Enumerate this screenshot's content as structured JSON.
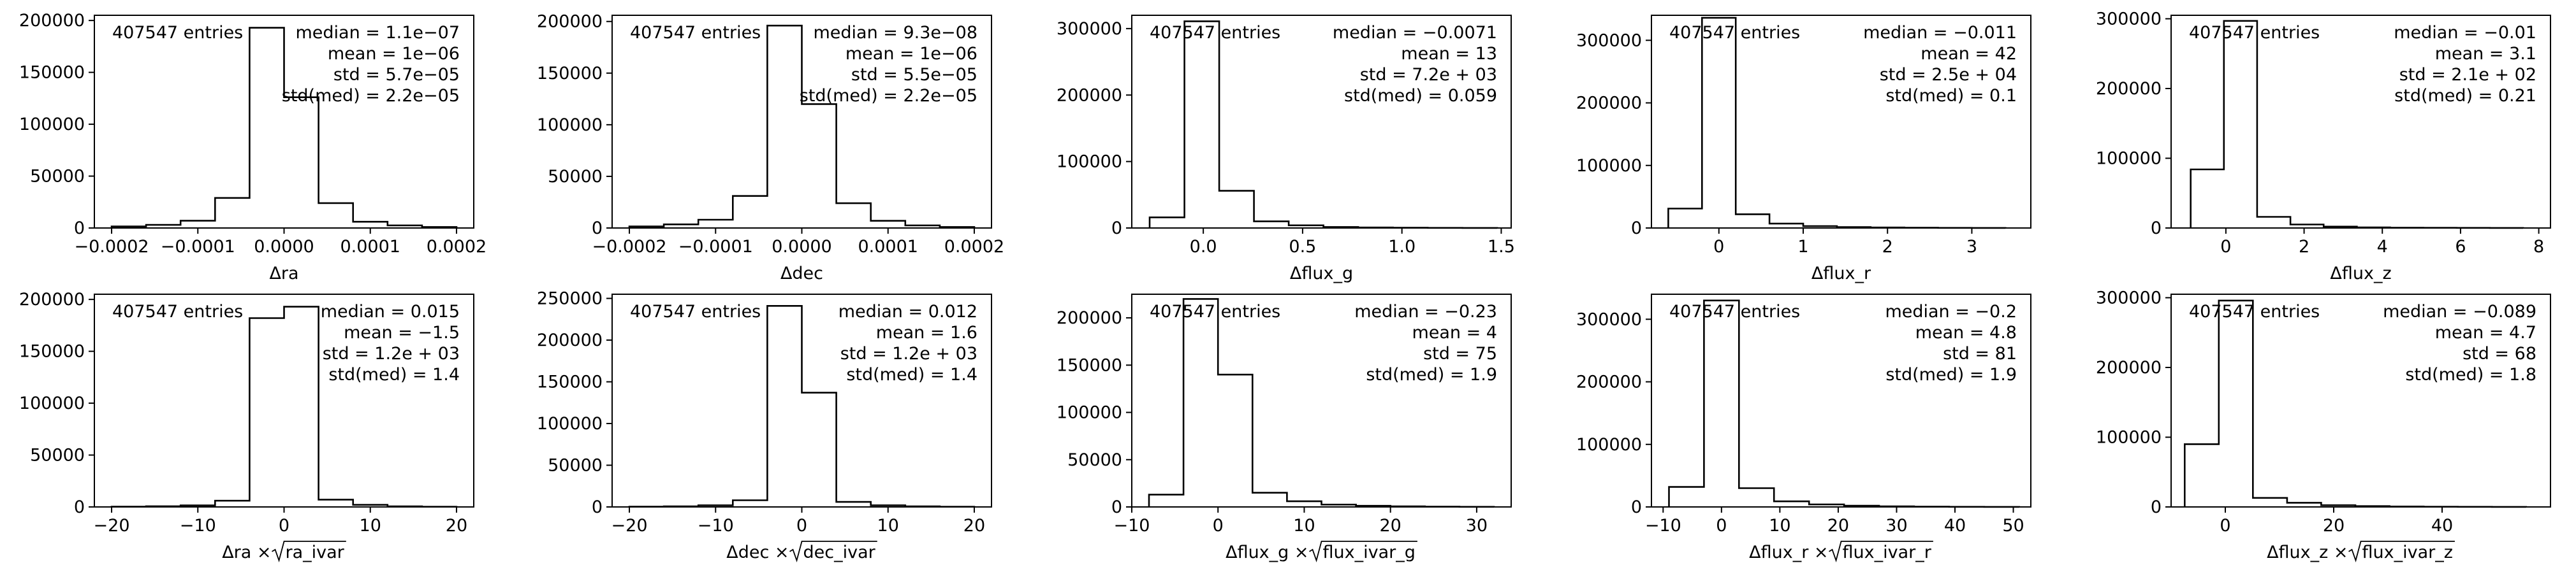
{
  "chart_data": [
    {
      "type": "bar",
      "xlabel": "Δra",
      "xticks": [
        -0.0002,
        -0.0001,
        0.0,
        0.0001,
        0.0002
      ],
      "xtick_labels": [
        "−0.0002",
        "−0.0001",
        "0.0000",
        "0.0001",
        "0.0002"
      ],
      "yticks": [
        0,
        50000,
        100000,
        150000,
        200000
      ],
      "ylim": [
        0,
        205000
      ],
      "xlim": [
        -0.00022,
        0.00022
      ],
      "bin_edges": [
        -0.0002,
        -0.00016,
        -0.00012,
        -8e-05,
        -4e-05,
        0.0,
        4e-05,
        8e-05,
        0.00012,
        0.00016,
        0.0002
      ],
      "counts": [
        1500,
        3000,
        7000,
        29000,
        193000,
        126000,
        24000,
        6000,
        2500,
        1000
      ],
      "annotation": {
        "entries": "407547 entries",
        "median": "median = 1.1e−07",
        "mean": "mean = 1e−06",
        "std": "std = 5.7e−05",
        "stdmed": "std(med) = 2.2e−05"
      }
    },
    {
      "type": "bar",
      "xlabel": "Δdec",
      "xticks": [
        -0.0002,
        -0.0001,
        0.0,
        0.0001,
        0.0002
      ],
      "xtick_labels": [
        "−0.0002",
        "−0.0001",
        "0.0000",
        "0.0001",
        "0.0002"
      ],
      "yticks": [
        0,
        50000,
        100000,
        150000,
        200000
      ],
      "ylim": [
        0,
        206000
      ],
      "xlim": [
        -0.00022,
        0.00022
      ],
      "bin_edges": [
        -0.0002,
        -0.00016,
        -0.00012,
        -8e-05,
        -4e-05,
        0.0,
        4e-05,
        8e-05,
        0.00012,
        0.00016,
        0.0002
      ],
      "counts": [
        1500,
        3500,
        8000,
        31000,
        196000,
        120000,
        24000,
        7000,
        2500,
        1000
      ],
      "annotation": {
        "entries": "407547 entries",
        "median": "median = 9.3e−08",
        "mean": "mean = 1e−06",
        "std": "std = 5.5e−05",
        "stdmed": "std(med) = 2.2e−05"
      }
    },
    {
      "type": "bar",
      "xlabel": "Δflux_g",
      "xticks": [
        0.0,
        0.5,
        1.0,
        1.5
      ],
      "xtick_labels": [
        "0.0",
        "0.5",
        "1.0",
        "1.5"
      ],
      "yticks": [
        0,
        100000,
        200000,
        300000
      ],
      "ylim": [
        0,
        320000
      ],
      "xlim": [
        -0.36,
        1.55
      ],
      "bin_edges": [
        -0.27,
        -0.095,
        0.08,
        0.255,
        0.43,
        0.605,
        0.78,
        0.955,
        1.13,
        1.305,
        1.48
      ],
      "counts": [
        16000,
        311000,
        56000,
        10000,
        4000,
        1500,
        800,
        400,
        200,
        100
      ],
      "annotation": {
        "entries": "407547 entries",
        "median": "median = −0.0071",
        "mean": "mean = 13",
        "std": "std = 7.2e + 03",
        "stdmed": "std(med) = 0.059"
      }
    },
    {
      "type": "bar",
      "xlabel": "Δflux_r",
      "xticks": [
        0,
        1,
        2,
        3
      ],
      "xtick_labels": [
        "0",
        "1",
        "2",
        "3"
      ],
      "yticks": [
        0,
        100000,
        200000,
        300000
      ],
      "ylim": [
        0,
        340000
      ],
      "xlim": [
        -0.8,
        3.7
      ],
      "bin_edges": [
        -0.6,
        -0.2,
        0.2,
        0.6,
        1.0,
        1.4,
        1.8,
        2.2,
        2.6,
        3.0,
        3.4
      ],
      "counts": [
        31000,
        336000,
        22000,
        7000,
        3000,
        1500,
        800,
        400,
        200,
        100
      ],
      "annotation": {
        "entries": "407547 entries",
        "median": "median = −0.011",
        "mean": "mean = 42",
        "std": "std = 2.5e + 04",
        "stdmed": "std(med) = 0.1"
      }
    },
    {
      "type": "bar",
      "xlabel": "Δflux_z",
      "xticks": [
        0,
        2,
        4,
        6,
        8
      ],
      "xtick_labels": [
        "0",
        "2",
        "4",
        "6",
        "8"
      ],
      "yticks": [
        0,
        100000,
        200000,
        300000
      ],
      "ylim": [
        0,
        305000
      ],
      "xlim": [
        -1.4,
        8.3
      ],
      "bin_edges": [
        -0.9,
        -0.05,
        0.8,
        1.65,
        2.5,
        3.35,
        4.2,
        5.05,
        5.9,
        6.75,
        7.6
      ],
      "counts": [
        84000,
        297000,
        16000,
        5000,
        2000,
        900,
        500,
        300,
        150,
        80
      ],
      "annotation": {
        "entries": "407547 entries",
        "median": "median = −0.01",
        "mean": "mean = 3.1",
        "std": "std = 2.1e + 02",
        "stdmed": "std(med) = 0.21"
      }
    },
    {
      "type": "bar",
      "xlabel_main": "Δra × ",
      "xlabel_sqrt": "ra_ivar",
      "xticks": [
        -20,
        -10,
        0,
        10,
        20
      ],
      "xtick_labels": [
        "−20",
        "−10",
        "0",
        "10",
        "20"
      ],
      "yticks": [
        0,
        50000,
        100000,
        150000,
        200000
      ],
      "ylim": [
        0,
        205000
      ],
      "xlim": [
        -22,
        22
      ],
      "bin_edges": [
        -20,
        -16,
        -12,
        -8,
        -4,
        0,
        4,
        8,
        12,
        16,
        20
      ],
      "counts": [
        300,
        700,
        1500,
        6000,
        182000,
        193000,
        7000,
        2000,
        600,
        200
      ],
      "annotation": {
        "entries": "407547 entries",
        "median": "median = 0.015",
        "mean": "mean = −1.5",
        "std": "std = 1.2e + 03",
        "stdmed": "std(med) = 1.4"
      }
    },
    {
      "type": "bar",
      "xlabel_main": "Δdec × ",
      "xlabel_sqrt": "dec_ivar",
      "xticks": [
        -20,
        -10,
        0,
        10,
        20
      ],
      "xtick_labels": [
        "−20",
        "−10",
        "0",
        "10",
        "20"
      ],
      "yticks": [
        0,
        50000,
        100000,
        150000,
        200000,
        250000
      ],
      "ylim": [
        0,
        255000
      ],
      "xlim": [
        -22,
        22
      ],
      "bin_edges": [
        -20,
        -16,
        -12,
        -8,
        -4,
        0,
        4,
        8,
        12,
        16,
        20
      ],
      "counts": [
        300,
        800,
        2000,
        8000,
        241000,
        137000,
        6000,
        2000,
        700,
        200
      ],
      "annotation": {
        "entries": "407547 entries",
        "median": "median = 0.012",
        "mean": "mean = 1.6",
        "std": "std = 1.2e + 03",
        "stdmed": "std(med) = 1.4"
      }
    },
    {
      "type": "bar",
      "xlabel_main": "Δflux_g × ",
      "xlabel_sqrt": "flux_ivar_g",
      "xticks": [
        -10,
        0,
        10,
        20,
        30
      ],
      "xtick_labels": [
        "−10",
        "0",
        "10",
        "20",
        "30"
      ],
      "yticks": [
        0,
        50000,
        100000,
        150000,
        200000
      ],
      "ylim": [
        0,
        225000
      ],
      "xlim": [
        -10,
        34
      ],
      "bin_edges": [
        -8,
        -4,
        0,
        4,
        8,
        12,
        16,
        20,
        24,
        28,
        32
      ],
      "counts": [
        13000,
        220000,
        140000,
        15000,
        6000,
        2500,
        1200,
        600,
        300,
        150
      ],
      "annotation": {
        "entries": "407547 entries",
        "median": "median = −0.23",
        "mean": "mean = 4",
        "std": "std = 75",
        "stdmed": "std(med) = 1.9"
      }
    },
    {
      "type": "bar",
      "xlabel_main": "Δflux_r × ",
      "xlabel_sqrt": "flux_ivar_r",
      "xticks": [
        -10,
        0,
        10,
        20,
        30,
        40,
        50
      ],
      "xtick_labels": [
        "−10",
        "0",
        "10",
        "20",
        "30",
        "40",
        "50"
      ],
      "yticks": [
        0,
        100000,
        200000,
        300000
      ],
      "ylim": [
        0,
        340000
      ],
      "xlim": [
        -12,
        53
      ],
      "bin_edges": [
        -9,
        -3,
        3,
        9,
        15,
        21,
        27,
        33,
        39,
        45,
        51
      ],
      "counts": [
        32000,
        330000,
        30000,
        9000,
        4000,
        2000,
        1000,
        500,
        250,
        100
      ],
      "annotation": {
        "entries": "407547 entries",
        "median": "median = −0.2",
        "mean": "mean = 4.8",
        "std": "std = 81",
        "stdmed": "std(med) = 1.9"
      }
    },
    {
      "type": "bar",
      "xlabel_main": "Δflux_z × ",
      "xlabel_sqrt": "flux_ivar_z",
      "xticks": [
        0,
        20,
        40
      ],
      "xtick_labels": [
        "0",
        "20",
        "40"
      ],
      "yticks": [
        0,
        100000,
        200000,
        300000
      ],
      "ylim": [
        0,
        305000
      ],
      "xlim": [
        -10,
        60
      ],
      "bin_edges": [
        -7.5,
        -1.2,
        5.1,
        11.4,
        17.7,
        24,
        30.3,
        36.6,
        42.9,
        49.2,
        55.5
      ],
      "counts": [
        90000,
        296000,
        13000,
        6000,
        2500,
        1200,
        600,
        300,
        150,
        80
      ],
      "annotation": {
        "entries": "407547 entries",
        "median": "median = −0.089",
        "mean": "mean = 4.7",
        "std": "std = 68",
        "stdmed": "std(med) = 1.8"
      }
    }
  ]
}
